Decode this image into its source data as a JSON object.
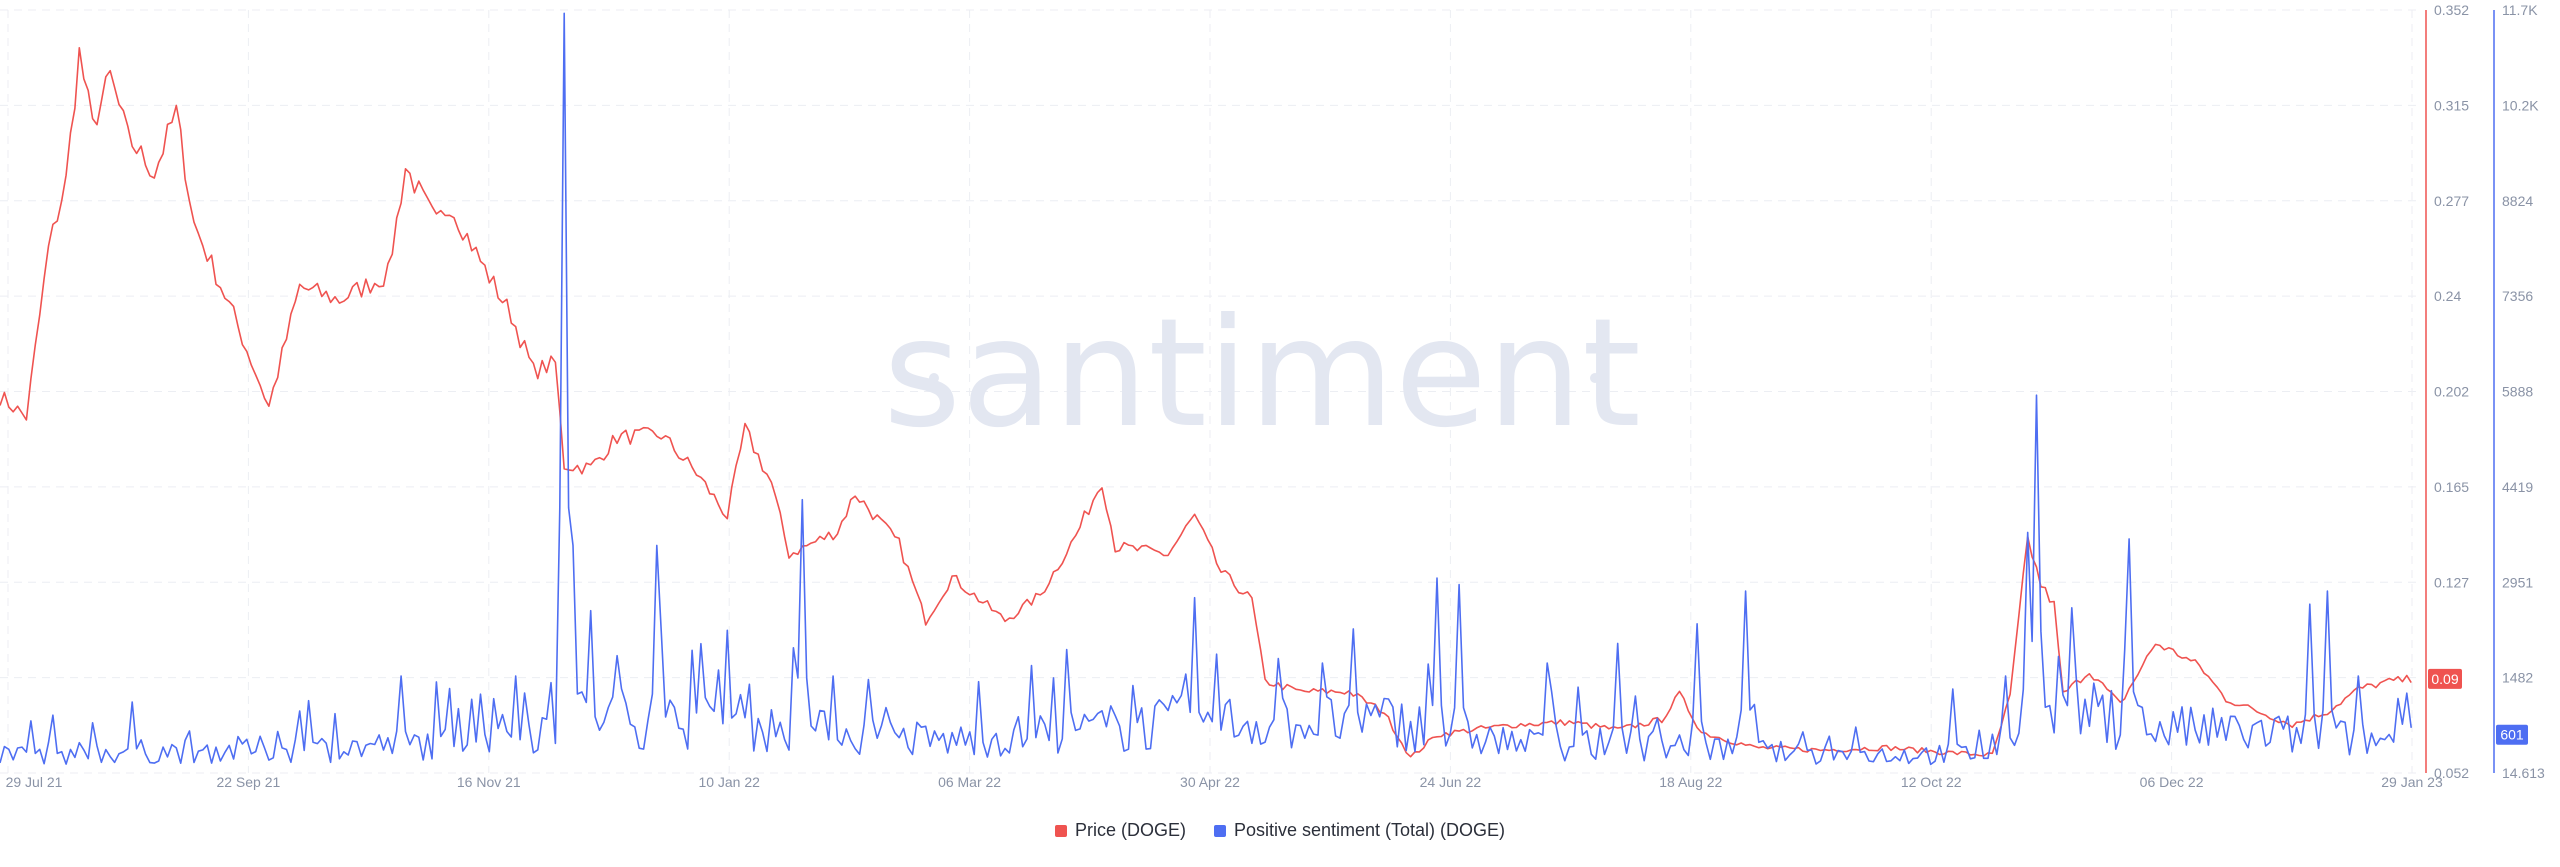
{
  "watermark": "santiment",
  "legend": [
    {
      "label": "Price (DOGE)",
      "color": "#ef5350"
    },
    {
      "label": "Positive sentiment (Total) (DOGE)",
      "color": "#4e6ef2"
    }
  ],
  "chart_data": {
    "type": "line",
    "x_tick_labels": [
      "29 Jul 21",
      "22 Sep 21",
      "16 Nov 21",
      "10 Jan 22",
      "06 Mar 22",
      "30 Apr 22",
      "24 Jun 22",
      "18 Aug 22",
      "12 Oct 22",
      "06 Dec 22",
      "29 Jan 23"
    ],
    "x_range": [
      "2021-07-29",
      "2023-01-29"
    ],
    "y_price": {
      "ticks": [
        "0.352",
        "0.315",
        "0.277",
        "0.24",
        "0.202",
        "0.165",
        "0.127",
        "0.09",
        "0.052"
      ],
      "range": [
        0.052,
        0.352
      ],
      "current_label": "0.09"
    },
    "y_sentiment": {
      "ticks": [
        "11.7K",
        "10.2K",
        "8824",
        "7356",
        "5888",
        "4419",
        "2951",
        "1482",
        "14.613"
      ],
      "range": [
        14.613,
        11700
      ],
      "current_label": "601"
    },
    "grid": true,
    "legend_position": "bottom-center",
    "series": [
      {
        "name": "Price (DOGE)",
        "axis": "left-price",
        "color": "#ef5350",
        "anchors": [
          [
            "2021-07-29",
            0.2
          ],
          [
            "2021-08-04",
            0.192
          ],
          [
            "2021-08-09",
            0.258
          ],
          [
            "2021-08-13",
            0.285
          ],
          [
            "2021-08-16",
            0.335
          ],
          [
            "2021-08-19",
            0.306
          ],
          [
            "2021-08-23",
            0.326
          ],
          [
            "2021-08-27",
            0.302
          ],
          [
            "2021-09-02",
            0.288
          ],
          [
            "2021-09-07",
            0.312
          ],
          [
            "2021-09-11",
            0.268
          ],
          [
            "2021-09-20",
            0.232
          ],
          [
            "2021-09-28",
            0.196
          ],
          [
            "2021-10-05",
            0.243
          ],
          [
            "2021-10-14",
            0.238
          ],
          [
            "2021-10-25",
            0.248
          ],
          [
            "2021-10-29",
            0.29
          ],
          [
            "2021-11-05",
            0.268
          ],
          [
            "2021-11-08",
            0.276
          ],
          [
            "2021-11-16",
            0.25
          ],
          [
            "2021-11-22",
            0.232
          ],
          [
            "2021-11-27",
            0.21
          ],
          [
            "2021-12-02",
            0.213
          ],
          [
            "2021-12-04",
            0.173
          ],
          [
            "2021-12-10",
            0.172
          ],
          [
            "2021-12-16",
            0.184
          ],
          [
            "2021-12-26",
            0.185
          ],
          [
            "2022-01-03",
            0.17
          ],
          [
            "2022-01-10",
            0.153
          ],
          [
            "2022-01-14",
            0.187
          ],
          [
            "2022-01-20",
            0.166
          ],
          [
            "2022-01-24",
            0.138
          ],
          [
            "2022-02-04",
            0.147
          ],
          [
            "2022-02-08",
            0.162
          ],
          [
            "2022-02-18",
            0.142
          ],
          [
            "2022-02-24",
            0.112
          ],
          [
            "2022-03-02",
            0.129
          ],
          [
            "2022-03-14",
            0.112
          ],
          [
            "2022-03-22",
            0.122
          ],
          [
            "2022-03-30",
            0.145
          ],
          [
            "2022-04-05",
            0.167
          ],
          [
            "2022-04-08",
            0.141
          ],
          [
            "2022-04-20",
            0.138
          ],
          [
            "2022-04-26",
            0.153
          ],
          [
            "2022-05-02",
            0.131
          ],
          [
            "2022-05-09",
            0.12
          ],
          [
            "2022-05-12",
            0.088
          ],
          [
            "2022-05-20",
            0.084
          ],
          [
            "2022-05-31",
            0.084
          ],
          [
            "2022-06-08",
            0.076
          ],
          [
            "2022-06-14",
            0.058
          ],
          [
            "2022-06-20",
            0.067
          ],
          [
            "2022-06-28",
            0.069
          ],
          [
            "2022-07-08",
            0.071
          ],
          [
            "2022-07-20",
            0.072
          ],
          [
            "2022-07-31",
            0.069
          ],
          [
            "2022-08-10",
            0.073
          ],
          [
            "2022-08-14",
            0.083
          ],
          [
            "2022-08-19",
            0.068
          ],
          [
            "2022-08-31",
            0.062
          ],
          [
            "2022-09-15",
            0.061
          ],
          [
            "2022-09-30",
            0.062
          ],
          [
            "2022-10-14",
            0.06
          ],
          [
            "2022-10-24",
            0.059
          ],
          [
            "2022-10-28",
            0.082
          ],
          [
            "2022-11-01",
            0.144
          ],
          [
            "2022-11-04",
            0.126
          ],
          [
            "2022-11-07",
            0.118
          ],
          [
            "2022-11-09",
            0.083
          ],
          [
            "2022-11-15",
            0.092
          ],
          [
            "2022-11-22",
            0.079
          ],
          [
            "2022-11-30",
            0.103
          ],
          [
            "2022-12-06",
            0.098
          ],
          [
            "2022-12-10",
            0.094
          ],
          [
            "2022-12-16",
            0.081
          ],
          [
            "2022-12-22",
            0.077
          ],
          [
            "2022-12-31",
            0.071
          ],
          [
            "2023-01-08",
            0.076
          ],
          [
            "2023-01-15",
            0.085
          ],
          [
            "2023-01-22",
            0.088
          ],
          [
            "2023-01-27",
            0.089
          ]
        ]
      },
      {
        "name": "Positive sentiment (Total) (DOGE)",
        "axis": "right-sentiment",
        "color": "#4e6ef2",
        "baseline": [
          [
            "2021-07-29",
            300
          ],
          [
            "2021-10-15",
            400
          ],
          [
            "2021-11-10",
            500
          ],
          [
            "2021-11-30",
            700
          ],
          [
            "2021-12-10",
            900
          ],
          [
            "2022-03-01",
            500
          ],
          [
            "2022-04-25",
            800
          ],
          [
            "2022-06-10",
            800
          ],
          [
            "2022-07-10",
            450
          ],
          [
            "2022-08-15",
            450
          ],
          [
            "2022-09-10",
            300
          ],
          [
            "2022-10-20",
            300
          ],
          [
            "2022-11-10",
            1000
          ],
          [
            "2022-12-01",
            700
          ],
          [
            "2023-01-27",
            500
          ]
        ],
        "spikes": [
          [
            "2021-08-10",
            900
          ],
          [
            "2021-08-28",
            1100
          ],
          [
            "2021-09-30",
            650
          ],
          [
            "2021-10-28",
            1500
          ],
          [
            "2021-11-10",
            1000
          ],
          [
            "2021-11-23",
            1500
          ],
          [
            "2021-12-04",
            11650
          ],
          [
            "2021-12-06",
            3500
          ],
          [
            "2021-12-10",
            2500
          ],
          [
            "2021-12-25",
            3500
          ],
          [
            "2022-01-10",
            2200
          ],
          [
            "2022-01-27",
            4200
          ],
          [
            "2022-02-03",
            1500
          ],
          [
            "2022-04-26",
            2700
          ],
          [
            "2022-05-25",
            1700
          ],
          [
            "2022-06-20",
            3000
          ],
          [
            "2022-06-25",
            2900
          ],
          [
            "2022-07-15",
            1700
          ],
          [
            "2022-07-31",
            2000
          ],
          [
            "2022-08-18",
            2300
          ],
          [
            "2022-08-29",
            2800
          ],
          [
            "2022-10-15",
            1300
          ],
          [
            "2022-10-27",
            1500
          ],
          [
            "2022-11-01",
            3700
          ],
          [
            "2022-11-03",
            5800
          ],
          [
            "2022-11-08",
            1800
          ],
          [
            "2022-11-24",
            3600
          ],
          [
            "2023-01-04",
            2600
          ],
          [
            "2023-01-08",
            2800
          ],
          [
            "2023-01-15",
            1500
          ]
        ]
      }
    ]
  }
}
